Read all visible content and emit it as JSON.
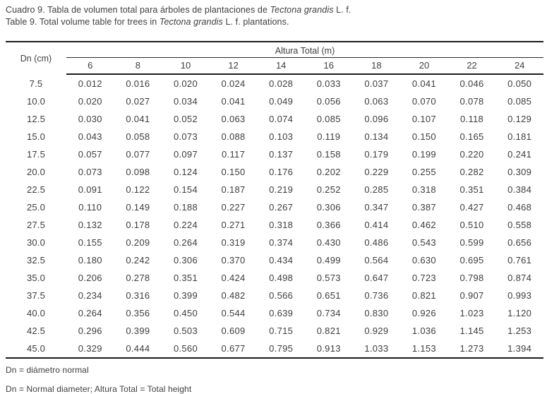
{
  "title_es": {
    "prefix": "Cuadro 9. Tabla de volumen total para árboles de plantaciones de ",
    "italic": "Tectona grandis",
    "suffix": " L. f."
  },
  "title_en": {
    "prefix": "Table 9. Total volume table for trees in ",
    "italic": "Tectona grandis",
    "suffix": " L. f. plantations."
  },
  "table": {
    "row_header_label": "Dn (cm)",
    "col_group_label": "Altura Total (m)",
    "height_columns": [
      "6",
      "8",
      "10",
      "12",
      "14",
      "16",
      "18",
      "20",
      "22",
      "24"
    ],
    "rows": [
      {
        "dn": "7.5",
        "values": [
          "0.012",
          "0.016",
          "0.020",
          "0.024",
          "0.028",
          "0.033",
          "0.037",
          "0.041",
          "0.046",
          "0.050"
        ]
      },
      {
        "dn": "10.0",
        "values": [
          "0.020",
          "0.027",
          "0.034",
          "0.041",
          "0.049",
          "0.056",
          "0.063",
          "0.070",
          "0.078",
          "0.085"
        ]
      },
      {
        "dn": "12.5",
        "values": [
          "0.030",
          "0.041",
          "0.052",
          "0.063",
          "0.074",
          "0.085",
          "0.096",
          "0.107",
          "0.118",
          "0.129"
        ]
      },
      {
        "dn": "15.0",
        "values": [
          "0.043",
          "0.058",
          "0.073",
          "0.088",
          "0.103",
          "0.119",
          "0.134",
          "0.150",
          "0.165",
          "0.181"
        ]
      },
      {
        "dn": "17.5",
        "values": [
          "0.057",
          "0.077",
          "0.097",
          "0.117",
          "0.137",
          "0.158",
          "0.179",
          "0.199",
          "0.220",
          "0.241"
        ]
      },
      {
        "dn": "20.0",
        "values": [
          "0.073",
          "0.098",
          "0.124",
          "0.150",
          "0.176",
          "0.202",
          "0.229",
          "0.255",
          "0.282",
          "0.309"
        ]
      },
      {
        "dn": "22.5",
        "values": [
          "0.091",
          "0.122",
          "0.154",
          "0.187",
          "0.219",
          "0.252",
          "0.285",
          "0.318",
          "0.351",
          "0.384"
        ]
      },
      {
        "dn": "25.0",
        "values": [
          "0.110",
          "0.149",
          "0.188",
          "0.227",
          "0.267",
          "0.306",
          "0.347",
          "0.387",
          "0.427",
          "0.468"
        ]
      },
      {
        "dn": "27.5",
        "values": [
          "0.132",
          "0.178",
          "0.224",
          "0.271",
          "0.318",
          "0.366",
          "0.414",
          "0.462",
          "0.510",
          "0.558"
        ]
      },
      {
        "dn": "30.0",
        "values": [
          "0.155",
          "0.209",
          "0.264",
          "0.319",
          "0.374",
          "0.430",
          "0.486",
          "0.543",
          "0.599",
          "0.656"
        ]
      },
      {
        "dn": "32.5",
        "values": [
          "0.180",
          "0.242",
          "0.306",
          "0.370",
          "0.434",
          "0.499",
          "0.564",
          "0.630",
          "0.695",
          "0.761"
        ]
      },
      {
        "dn": "35.0",
        "values": [
          "0.206",
          "0.278",
          "0.351",
          "0.424",
          "0.498",
          "0.573",
          "0.647",
          "0.723",
          "0.798",
          "0.874"
        ]
      },
      {
        "dn": "37.5",
        "values": [
          "0.234",
          "0.316",
          "0.399",
          "0.482",
          "0.566",
          "0.651",
          "0.736",
          "0.821",
          "0.907",
          "0.993"
        ]
      },
      {
        "dn": "40.0",
        "values": [
          "0.264",
          "0.356",
          "0.450",
          "0.544",
          "0.639",
          "0.734",
          "0.830",
          "0.926",
          "1.023",
          "1.120"
        ]
      },
      {
        "dn": "42.5",
        "values": [
          "0.296",
          "0.399",
          "0.503",
          "0.609",
          "0.715",
          "0.821",
          "0.929",
          "1.036",
          "1.145",
          "1.253"
        ]
      },
      {
        "dn": "45.0",
        "values": [
          "0.329",
          "0.444",
          "0.560",
          "0.677",
          "0.795",
          "0.913",
          "1.033",
          "1.153",
          "1.273",
          "1.394"
        ]
      }
    ]
  },
  "footnotes": [
    "Dn = diámetro normal",
    "Dn = Normal diameter; Altura Total = Total height"
  ]
}
